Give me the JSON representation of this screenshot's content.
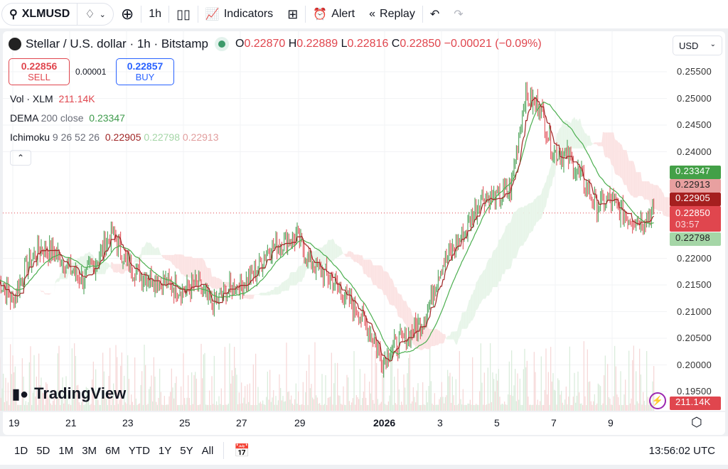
{
  "toolbar": {
    "symbol": "XLMUSD",
    "interval": "1h",
    "indicators": "Indicators",
    "alert": "Alert",
    "replay": "Replay"
  },
  "legend": {
    "title": "Stellar / U.S. dollar · 1h · Bitstamp",
    "o_label": "O",
    "o": "0.22870",
    "h_label": "H",
    "h": "0.22889",
    "l_label": "L",
    "l": "0.22816",
    "c_label": "C",
    "c": "0.22850",
    "change": "−0.00021 (−0.09%)"
  },
  "trade": {
    "sell_price": "0.22856",
    "sell_label": "SELL",
    "spread": "0.00001",
    "buy_price": "0.22857",
    "buy_label": "BUY"
  },
  "indicators": {
    "vol_label": "Vol · XLM",
    "vol_value": "211.14K",
    "dema_label": "DEMA",
    "dema_params": "200 close",
    "dema_value": "0.23347",
    "ichimoku_label": "Ichimoku",
    "ichimoku_params": "9 26 52 26",
    "ichimoku_v1": "0.22905",
    "ichimoku_v2": "0.22798",
    "ichimoku_v3": "0.22913"
  },
  "currency": "USD",
  "price_axis": [
    "0.25500",
    "0.25000",
    "0.24500",
    "0.24000",
    "0.22000",
    "0.21500",
    "0.21000",
    "0.20500",
    "0.20000",
    "0.19500"
  ],
  "price_tags": {
    "dema": "0.23347",
    "span_b": "0.22913",
    "conversion": "0.22905",
    "last": "0.22850",
    "countdown": "03:57",
    "span_a": "0.22798",
    "volume": "211.14K"
  },
  "time_axis": [
    "19",
    "21",
    "23",
    "25",
    "27",
    "29",
    "2026",
    "3",
    "5",
    "7",
    "9"
  ],
  "ranges": [
    "1D",
    "5D",
    "1M",
    "3M",
    "6M",
    "YTD",
    "1Y",
    "5Y",
    "All"
  ],
  "clock": "13:56:02 UTC",
  "watermark": "TradingView",
  "colors": {
    "up": "#3c9a4a",
    "down": "#e0464e",
    "dema": "#4caf50",
    "conversion": "#a02626",
    "cloud_up": "#e8f5e9",
    "cloud_down": "#fbe3e3"
  },
  "chart_data": {
    "type": "candlestick",
    "ylim": [
      0.193,
      0.258
    ],
    "yticks": [
      0.195,
      0.2,
      0.205,
      0.21,
      0.215,
      0.22,
      0.24,
      0.245,
      0.25,
      0.255
    ],
    "x": [
      "2025-12-18 12:00",
      "2025-12-19 00:00",
      "2025-12-19 12:00",
      "2025-12-20 00:00",
      "2025-12-20 12:00",
      "2025-12-21 00:00",
      "2025-12-21 12:00",
      "2025-12-22 00:00",
      "2025-12-22 12:00",
      "2025-12-23 00:00",
      "2025-12-23 12:00",
      "2025-12-24 00:00",
      "2025-12-24 12:00",
      "2025-12-25 00:00",
      "2025-12-25 12:00",
      "2025-12-26 00:00",
      "2025-12-26 12:00",
      "2025-12-27 00:00",
      "2025-12-27 12:00",
      "2025-12-28 00:00",
      "2025-12-28 12:00",
      "2025-12-29 00:00",
      "2025-12-29 12:00",
      "2025-12-30 00:00",
      "2025-12-30 12:00",
      "2025-12-31 00:00",
      "2025-12-31 12:00",
      "2026-01-01 00:00",
      "2026-01-01 12:00",
      "2026-01-02 00:00",
      "2026-01-02 12:00",
      "2026-01-03 00:00",
      "2026-01-03 12:00",
      "2026-01-04 00:00",
      "2026-01-04 12:00",
      "2026-01-05 00:00",
      "2026-01-05 12:00",
      "2026-01-06 00:00",
      "2026-01-06 12:00",
      "2026-01-07 00:00",
      "2026-01-07 12:00",
      "2026-01-08 00:00",
      "2026-01-08 12:00",
      "2026-01-09 00:00",
      "2026-01-09 12:00",
      "2026-01-10 00:00",
      "2026-01-10 13:00"
    ],
    "close": [
      0.216,
      0.212,
      0.219,
      0.222,
      0.221,
      0.218,
      0.216,
      0.22,
      0.225,
      0.219,
      0.217,
      0.216,
      0.215,
      0.214,
      0.215,
      0.211,
      0.214,
      0.215,
      0.217,
      0.222,
      0.223,
      0.224,
      0.219,
      0.217,
      0.214,
      0.211,
      0.207,
      0.201,
      0.204,
      0.206,
      0.209,
      0.218,
      0.222,
      0.226,
      0.232,
      0.231,
      0.233,
      0.25,
      0.249,
      0.24,
      0.239,
      0.235,
      0.23,
      0.231,
      0.228,
      0.227,
      0.2285
    ],
    "last_price": 0.2285
  }
}
